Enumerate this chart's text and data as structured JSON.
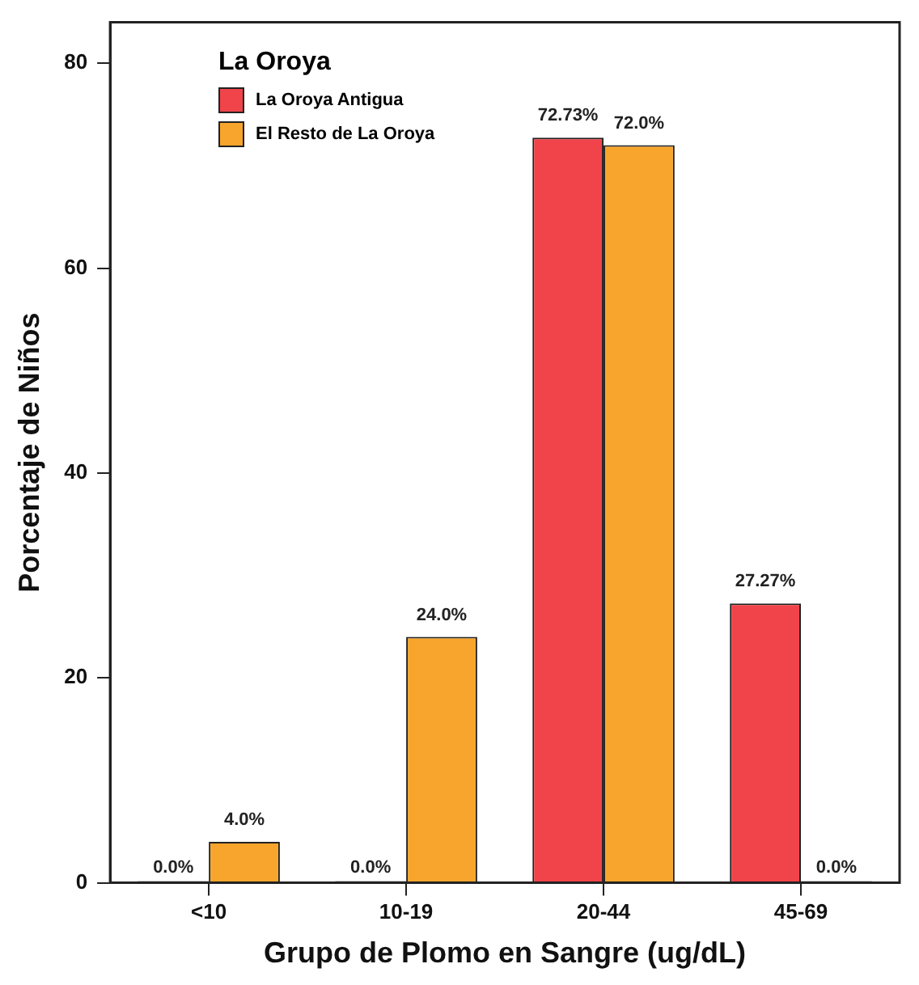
{
  "chart_data": {
    "type": "bar",
    "xlabel": "Grupo de Plomo en Sangre (ug/dL)",
    "ylabel": "Porcentaje de Niños",
    "legend_title": "La Oroya",
    "categories": [
      "<10",
      "10-19",
      "20-44",
      "45-69"
    ],
    "series": [
      {
        "name": "La Oroya Antigua",
        "color": "#f0444a",
        "values": [
          0.0,
          0.0,
          72.73,
          27.27
        ],
        "value_labels": [
          "0.0%",
          "0.0%",
          "72.73%",
          "27.27%"
        ]
      },
      {
        "name": "El Resto de La Oroya",
        "color": "#f7a52c",
        "values": [
          4.0,
          24.0,
          72.0,
          0.0
        ],
        "value_labels": [
          "4.0%",
          "24.0%",
          "72.0%",
          "0.0%"
        ]
      }
    ],
    "ylim": [
      0,
      84
    ],
    "yticks": [
      0,
      20,
      40,
      60,
      80
    ],
    "grid": false,
    "legend": "top left"
  }
}
